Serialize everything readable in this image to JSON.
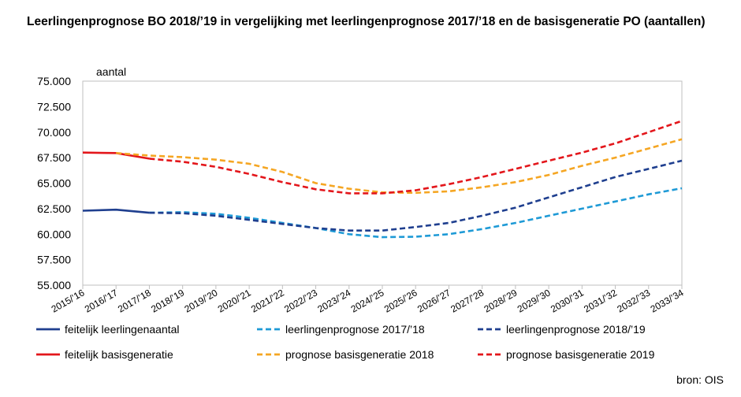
{
  "title": "Leerlingenprognose BO 2018/’19 in vergelijking met leerlingenprognose 2017/’18 en de basisgeneratie PO (aantallen)",
  "source": "bron: OIS",
  "chart_data": {
    "type": "line",
    "ylabel": "aantal",
    "ylim": [
      55000,
      75000
    ],
    "yticks": [
      55000,
      57500,
      60000,
      62500,
      65000,
      67500,
      70000,
      72500,
      75000
    ],
    "ytick_labels": [
      "55.000",
      "57.500",
      "60.000",
      "62.500",
      "65.000",
      "67.500",
      "70.000",
      "72.500",
      "75.000"
    ],
    "grid": false,
    "legend": "bottom",
    "categories": [
      "2015/’16",
      "2016/’17",
      "2017/’18",
      "2018/’19",
      "2019/’20",
      "2020/’21",
      "2021/’22",
      "2022/’23",
      "2023/’24",
      "2024/’25",
      "2025/’26",
      "2026/’27",
      "2027/’28",
      "2028/’29",
      "2029/’30",
      "2030/’31",
      "2031/’32",
      "2032/’33",
      "2033/’34"
    ],
    "series": [
      {
        "name": "feitelijk leerlingenaantal",
        "color": "#1f3f8f",
        "dash": "solid",
        "values": [
          62300,
          62400,
          62100,
          null,
          null,
          null,
          null,
          null,
          null,
          null,
          null,
          null,
          null,
          null,
          null,
          null,
          null,
          null,
          null
        ]
      },
      {
        "name": "leerlingenprognose 2017/’18",
        "color": "#1e9ad6",
        "dash": "dashed",
        "values": [
          null,
          null,
          62100,
          62150,
          62000,
          61600,
          61100,
          60600,
          60000,
          59700,
          59750,
          60000,
          60500,
          61100,
          61800,
          62500,
          63200,
          63900,
          64500
        ]
      },
      {
        "name": "leerlingenprognose 2018/’19",
        "color": "#1f3f8f",
        "dash": "dashed",
        "values": [
          null,
          null,
          62100,
          62050,
          61800,
          61400,
          61000,
          60600,
          60350,
          60350,
          60700,
          61100,
          61800,
          62600,
          63600,
          64600,
          65600,
          66400,
          67200
        ]
      },
      {
        "name": "feitelijk basisgeneratie",
        "color": "#e3161b",
        "dash": "solid",
        "values": [
          68000,
          67950,
          67400,
          null,
          null,
          null,
          null,
          null,
          null,
          null,
          null,
          null,
          null,
          null,
          null,
          null,
          null,
          null,
          null
        ]
      },
      {
        "name": "prognose basisgeneratie 2018",
        "color": "#f5a623",
        "dash": "dashed",
        "values": [
          null,
          67950,
          67700,
          67550,
          67300,
          66900,
          66100,
          65000,
          64450,
          64100,
          64050,
          64200,
          64600,
          65100,
          65800,
          66700,
          67500,
          68400,
          69300
        ]
      },
      {
        "name": "prognose basisgeneratie 2019",
        "color": "#e3161b",
        "dash": "dashed",
        "values": [
          null,
          null,
          67400,
          67100,
          66600,
          65900,
          65100,
          64400,
          64000,
          64000,
          64300,
          64900,
          65600,
          66400,
          67200,
          68000,
          68900,
          70000,
          71100
        ]
      }
    ]
  }
}
